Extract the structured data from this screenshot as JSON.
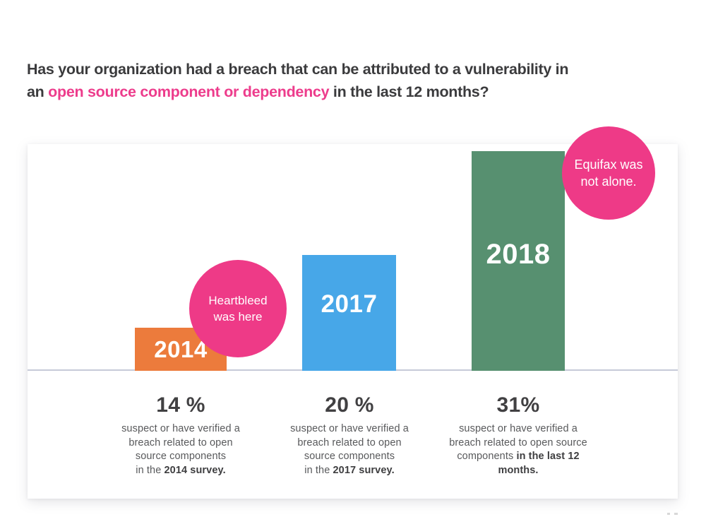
{
  "title": {
    "line1": "Has your organization had a breach that can be attributed to a vulnerability in",
    "line2_prefix": "an ",
    "line2_highlight": "open source component or dependency",
    "line2_suffix": " in the last 12 months?"
  },
  "colors": {
    "highlight_pink": "#ED3C8C",
    "callout_pink": "#EE3A87",
    "bar_orange": "#EC7B3C",
    "bar_blue": "#47A7E8",
    "bar_green": "#579070",
    "baseline_gray": "#C6CAD8",
    "title_text": "#3B3B3D",
    "desc_text": "#58595B",
    "percent_text": "#414042"
  },
  "bars": [
    {
      "year": "2014",
      "percent": "14 %",
      "desc_lines": [
        {
          "t": "suspect or have verified a",
          "b": ""
        },
        {
          "t": "breach related to open",
          "b": ""
        },
        {
          "t": "source components",
          "b": ""
        },
        {
          "t": "in the ",
          "b": "2014 survey."
        }
      ]
    },
    {
      "year": "2017",
      "percent": "20 %",
      "desc_lines": [
        {
          "t": "suspect or have verified a",
          "b": ""
        },
        {
          "t": "breach related to open",
          "b": ""
        },
        {
          "t": "source components",
          "b": ""
        },
        {
          "t": "in the ",
          "b": "2017 survey."
        }
      ]
    },
    {
      "year": "2018",
      "percent": "31%",
      "desc_lines": [
        {
          "t": "suspect or have verified a",
          "b": ""
        },
        {
          "t": "breach related to open source",
          "b": ""
        },
        {
          "t": "components ",
          "b": "in the last 12"
        },
        {
          "t": "",
          "b": "months."
        }
      ]
    }
  ],
  "callouts": [
    {
      "line1": "Heartbleed",
      "line2": "was here"
    },
    {
      "line1": "Equifax was",
      "line2": "not alone."
    }
  ],
  "chart_data": {
    "type": "bar",
    "title": "Has your organization had a breach that can be attributed to a vulnerability in an open source component or dependency in the last 12 months?",
    "categories": [
      "2014",
      "2017",
      "2018"
    ],
    "values": [
      14,
      20,
      31
    ],
    "unit": "%",
    "value_labels": [
      "14 %",
      "20 %",
      "31%"
    ],
    "bar_colors": [
      "#EC7B3C",
      "#47A7E8",
      "#579070"
    ],
    "bar_inner_labels": [
      "2014",
      "2017",
      "2018"
    ],
    "category_descriptions": [
      "suspect or have verified a breach related to open source components in the 2014 survey.",
      "suspect or have verified a breach related to open source components in the 2017 survey.",
      "suspect or have verified a breach related to open source components in the last 12 months."
    ],
    "annotations": [
      {
        "text": "Heartbleed was here",
        "attached_to": "2014",
        "shape": "circle",
        "color": "#EE3A87"
      },
      {
        "text": "Equifax was not alone.",
        "attached_to": "2018",
        "shape": "circle",
        "color": "#EE3A87"
      }
    ],
    "xlabel": "",
    "ylabel": "",
    "axes": "baseline only, no ticks or gridlines",
    "legend": "none",
    "note": "bar heights not drawn to value scale (infographic style)"
  }
}
